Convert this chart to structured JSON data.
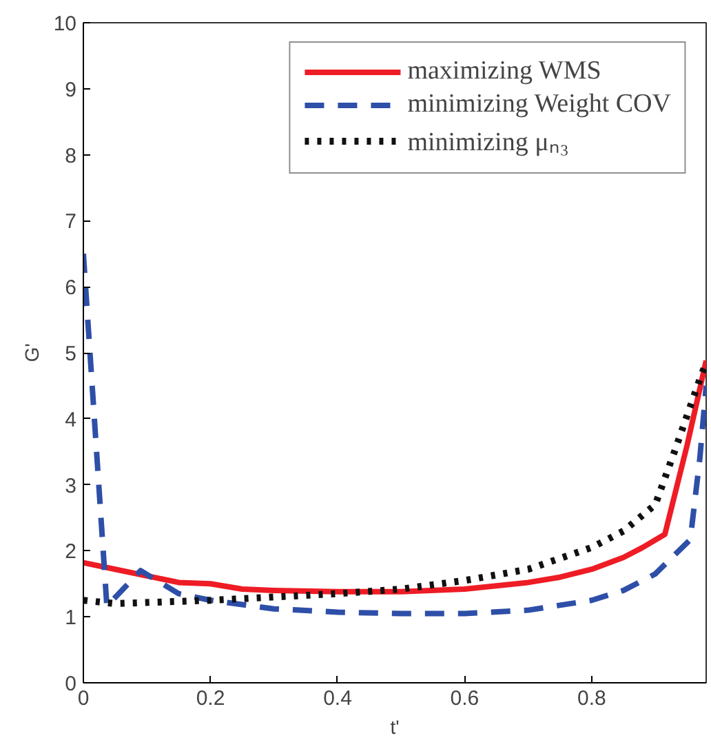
{
  "chart_data": {
    "type": "line",
    "xlabel": "t'",
    "ylabel": "G'",
    "xlim": [
      0,
      0.98
    ],
    "ylim": [
      0,
      10
    ],
    "xticks": [
      0,
      0.2,
      0.4,
      0.6,
      0.8
    ],
    "yticks": [
      0,
      1,
      2,
      3,
      4,
      5,
      6,
      7,
      8,
      9,
      10
    ],
    "grid": false,
    "legend": "top right",
    "series": [
      {
        "name": "maximizing WMS",
        "color": "#ee1c25",
        "line_style": "solid",
        "x": [
          0,
          0.05,
          0.1,
          0.15,
          0.2,
          0.25,
          0.3,
          0.4,
          0.5,
          0.6,
          0.7,
          0.75,
          0.8,
          0.85,
          0.88,
          0.915,
          0.95,
          0.98
        ],
        "values": [
          1.82,
          1.72,
          1.62,
          1.52,
          1.5,
          1.42,
          1.4,
          1.38,
          1.38,
          1.42,
          1.52,
          1.6,
          1.72,
          1.9,
          2.05,
          2.25,
          3.6,
          4.88
        ]
      },
      {
        "name": "minimizing Weight COV",
        "color": "#2e4fa8",
        "line_style": "dashed",
        "x": [
          0,
          0.037,
          0.09,
          0.15,
          0.2,
          0.3,
          0.4,
          0.5,
          0.6,
          0.7,
          0.8,
          0.85,
          0.9,
          0.955,
          0.97,
          0.98
        ],
        "values": [
          6.5,
          1.16,
          1.7,
          1.35,
          1.25,
          1.12,
          1.07,
          1.05,
          1.05,
          1.1,
          1.25,
          1.4,
          1.65,
          2.17,
          3.4,
          4.5
        ]
      },
      {
        "name": "minimizing μₙ₃",
        "color": "#111111",
        "line_style": "dotted",
        "x": [
          0,
          0.05,
          0.2,
          0.4,
          0.5,
          0.6,
          0.7,
          0.8,
          0.85,
          0.9,
          0.93,
          0.97,
          0.98
        ],
        "values": [
          1.25,
          1.2,
          1.25,
          1.35,
          1.42,
          1.55,
          1.72,
          2.05,
          2.3,
          2.7,
          3.5,
          4.6,
          4.85
        ]
      }
    ]
  }
}
